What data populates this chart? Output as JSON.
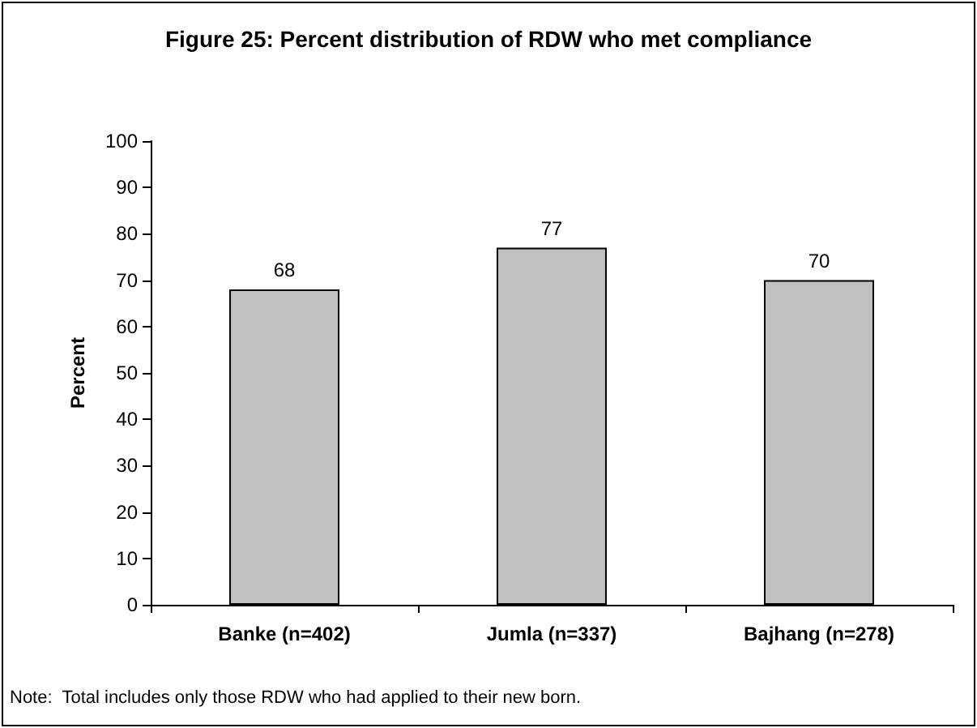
{
  "chart_data": {
    "type": "bar",
    "title": "Figure 25: Percent distribution of RDW who met compliance",
    "categories": [
      "Banke (n=402)",
      "Jumla (n=337)",
      "Bajhang (n=278)"
    ],
    "values": [
      68,
      77,
      70
    ],
    "color": "#c0c0c0",
    "ylabel": "Percent",
    "ylim": [
      0,
      100
    ],
    "yticks": [
      0,
      10,
      20,
      30,
      40,
      50,
      60,
      70,
      80,
      90,
      100
    ],
    "data_labels": true,
    "grid": false,
    "annotations": [
      "Note:  Total includes only those RDW who had applied to their new born."
    ]
  }
}
